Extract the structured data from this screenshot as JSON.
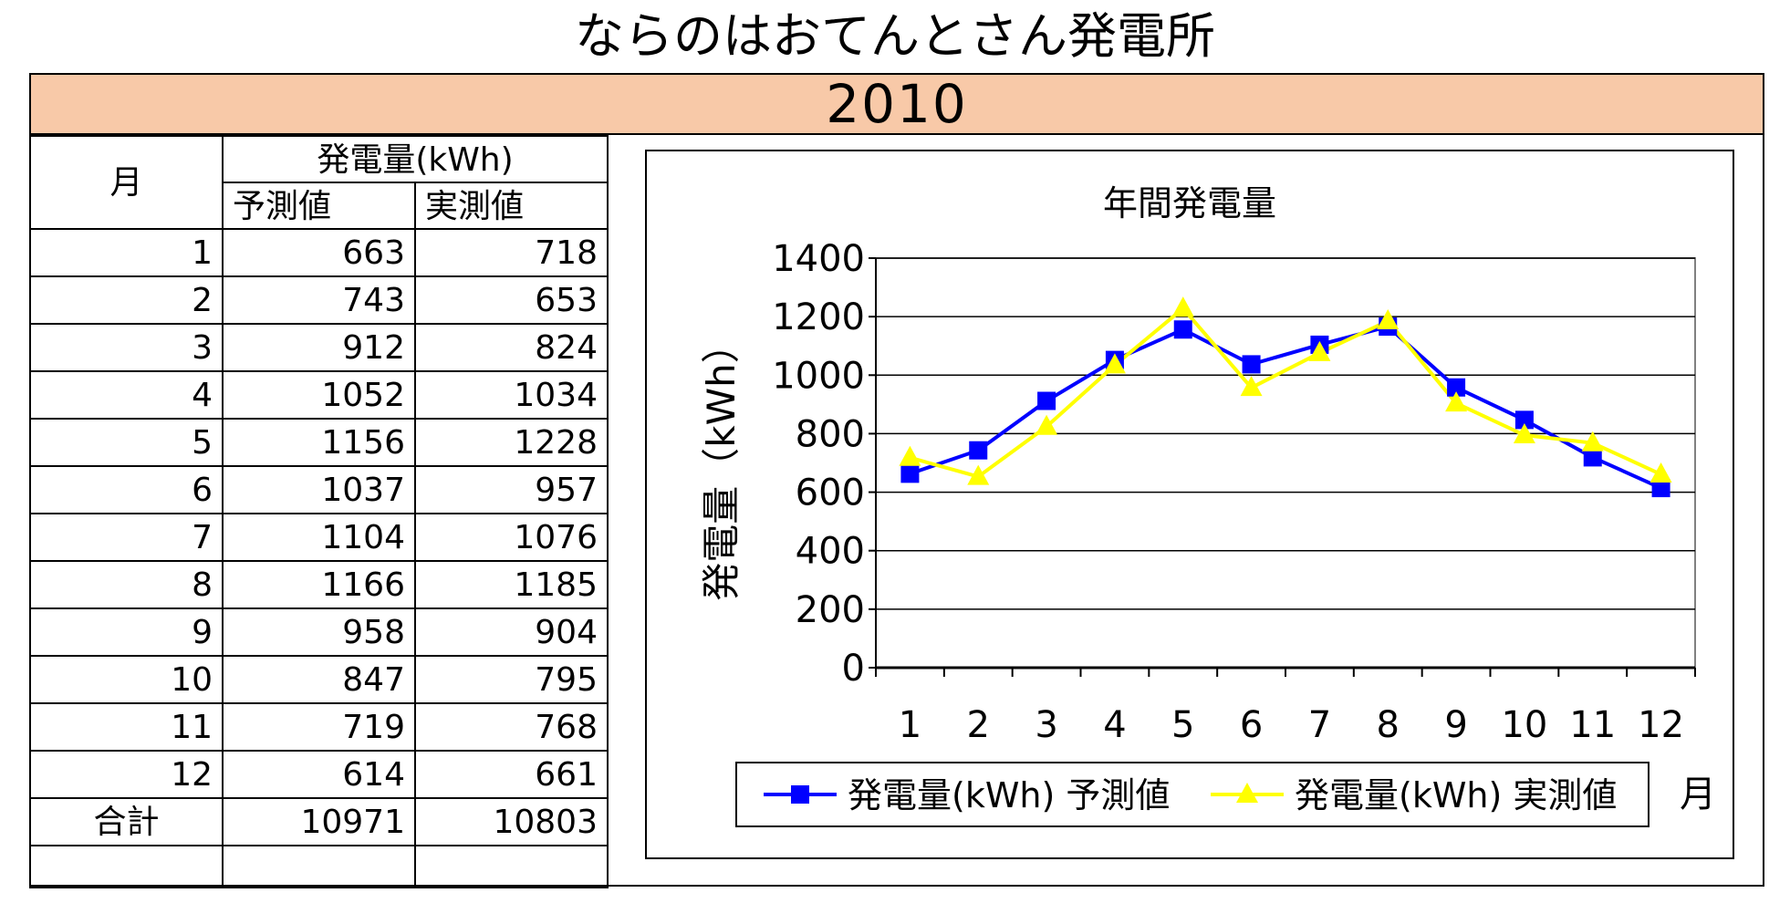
{
  "page": {
    "title": "ならのはおてんとさん発電所",
    "year": "2010"
  },
  "table": {
    "month_header": "月",
    "group_header": "発電量(kWh)",
    "col_predicted": "予測値",
    "col_actual": "実測値",
    "rows": [
      {
        "month": "1",
        "predicted": "663",
        "actual": "718"
      },
      {
        "month": "2",
        "predicted": "743",
        "actual": "653"
      },
      {
        "month": "3",
        "predicted": "912",
        "actual": "824"
      },
      {
        "month": "4",
        "predicted": "1052",
        "actual": "1034"
      },
      {
        "month": "5",
        "predicted": "1156",
        "actual": "1228"
      },
      {
        "month": "6",
        "predicted": "1037",
        "actual": "957"
      },
      {
        "month": "7",
        "predicted": "1104",
        "actual": "1076"
      },
      {
        "month": "8",
        "predicted": "1166",
        "actual": "1185"
      },
      {
        "month": "9",
        "predicted": "958",
        "actual": "904"
      },
      {
        "month": "10",
        "predicted": "847",
        "actual": "795"
      },
      {
        "month": "11",
        "predicted": "719",
        "actual": "768"
      },
      {
        "month": "12",
        "predicted": "614",
        "actual": "661"
      }
    ],
    "total_label": "合計",
    "total_predicted": "10971",
    "total_actual": "10803"
  },
  "chart_data": {
    "type": "line",
    "title": "年間発電量",
    "xlabel": "月",
    "ylabel": "発電量（kWh）",
    "categories": [
      "1",
      "2",
      "3",
      "4",
      "5",
      "6",
      "7",
      "8",
      "9",
      "10",
      "11",
      "12"
    ],
    "ylim": [
      0,
      1400
    ],
    "yticks": [
      0,
      200,
      400,
      600,
      800,
      1000,
      1200,
      1400
    ],
    "grid": true,
    "legend": "bottom",
    "series": [
      {
        "name": "発電量(kWh) 予測値",
        "color": "#0000ff",
        "marker": "square",
        "values": [
          663,
          743,
          912,
          1052,
          1156,
          1037,
          1104,
          1166,
          958,
          847,
          719,
          614
        ]
      },
      {
        "name": "発電量(kWh) 実測値",
        "color": "#ffff00",
        "marker": "triangle",
        "values": [
          718,
          653,
          824,
          1034,
          1228,
          957,
          1076,
          1185,
          904,
          795,
          768,
          661
        ]
      }
    ],
    "plot_background": "#ffffff",
    "gridline_color": "#000000"
  }
}
